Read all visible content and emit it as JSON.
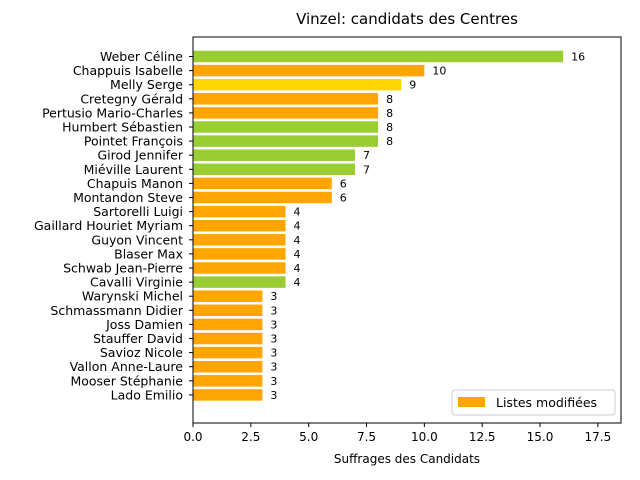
{
  "chart_data": {
    "type": "bar",
    "orientation": "horizontal",
    "title": "Vinzel: candidats des Centres",
    "xlabel": "Suffrages des Candidats",
    "ylabel": "",
    "xlim": [
      0,
      18.5
    ],
    "xticks": [
      0.0,
      2.5,
      5.0,
      7.5,
      10.0,
      12.5,
      15.0,
      17.5
    ],
    "xtick_labels": [
      "0.0",
      "2.5",
      "5.0",
      "7.5",
      "10.0",
      "12.5",
      "15.0",
      "17.5"
    ],
    "grid": false,
    "legend": {
      "position": "bottom-right",
      "entries": [
        {
          "label": "Listes modifiées",
          "color": "#ffa500"
        }
      ]
    },
    "categories": [
      "Weber Céline",
      "Chappuis Isabelle",
      "Melly Serge",
      "Cretegny Gérald",
      "Pertusio Mario-Charles",
      "Humbert Sébastien",
      "Pointet François",
      "Girod Jennifer",
      "Miéville Laurent",
      "Chapuis Manon",
      "Montandon Steve",
      "Sartorelli Luigi",
      "Gaillard Houriet Myriam",
      "Guyon Vincent",
      "Blaser Max",
      "Schwab Jean-Pierre",
      "Cavalli Virginie",
      "Warynski Michel",
      "Schmassmann Didier",
      "Joss Damien",
      "Stauffer David",
      "Savioz Nicole",
      "Vallon Anne-Laure",
      "Mooser Stéphanie",
      "Lado Emilio"
    ],
    "values": [
      16,
      10,
      9,
      8,
      8,
      8,
      8,
      7,
      7,
      6,
      6,
      4,
      4,
      4,
      4,
      4,
      4,
      3,
      3,
      3,
      3,
      3,
      3,
      3,
      3
    ],
    "value_labels": [
      "16",
      "10",
      "9",
      "8",
      "8",
      "8",
      "8",
      "7",
      "7",
      "6",
      "6",
      "4",
      "4",
      "4",
      "4",
      "4",
      "4",
      "3",
      "3",
      "3",
      "3",
      "3",
      "3",
      "3",
      "3"
    ],
    "colors": [
      "#9acd32",
      "#ffa500",
      "#ffd700",
      "#ffa500",
      "#ffa500",
      "#9acd32",
      "#9acd32",
      "#9acd32",
      "#9acd32",
      "#ffa500",
      "#ffa500",
      "#ffa500",
      "#ffa500",
      "#ffa500",
      "#ffa500",
      "#ffa500",
      "#9acd32",
      "#ffa500",
      "#ffa500",
      "#ffa500",
      "#ffa500",
      "#ffa500",
      "#ffa500",
      "#ffa500",
      "#ffa500"
    ]
  }
}
